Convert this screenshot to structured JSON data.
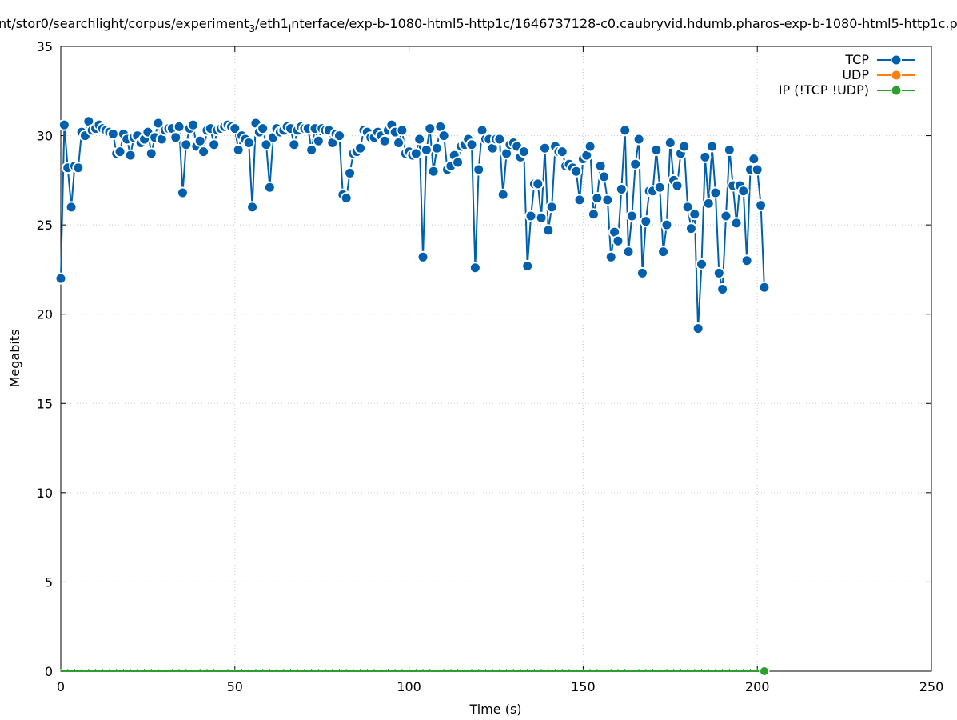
{
  "chart_data": {
    "type": "line",
    "title_parts": [
      "nt/stor0/searchlight/corpus/experiment",
      "3",
      "/eth1",
      "i",
      "nterface/exp-b-1080-html5-http1c/1646737128-c0.caubryvid.hdumb.pharos-exp-b-1080-html5-http1c.p"
    ],
    "xlabel": "Time (s)",
    "ylabel": "Megabits",
    "xlim": [
      0,
      250
    ],
    "ylim": [
      0,
      35
    ],
    "xticks": [
      0,
      50,
      100,
      150,
      200,
      250
    ],
    "yticks": [
      0,
      5,
      10,
      15,
      20,
      25,
      30,
      35
    ],
    "grid": true,
    "legend_position": "top-right",
    "series": [
      {
        "name": "TCP",
        "color": "#0060ad",
        "points": [
          [
            0,
            22.0
          ],
          [
            1,
            30.6
          ],
          [
            2,
            28.2
          ],
          [
            3,
            26.0
          ],
          [
            4,
            28.3
          ],
          [
            5,
            28.2
          ],
          [
            6,
            30.2
          ],
          [
            7,
            30.0
          ],
          [
            8,
            30.8
          ],
          [
            9,
            30.3
          ],
          [
            10,
            30.4
          ],
          [
            11,
            30.6
          ],
          [
            12,
            30.4
          ],
          [
            13,
            30.3
          ],
          [
            14,
            30.2
          ],
          [
            15,
            30.1
          ],
          [
            16,
            29.0
          ],
          [
            17,
            29.1
          ],
          [
            18,
            30.1
          ],
          [
            19,
            29.8
          ],
          [
            20,
            28.9
          ],
          [
            21,
            29.9
          ],
          [
            22,
            30.0
          ],
          [
            23,
            29.6
          ],
          [
            24,
            29.8
          ],
          [
            25,
            30.2
          ],
          [
            26,
            29.0
          ],
          [
            27,
            29.9
          ],
          [
            28,
            30.7
          ],
          [
            29,
            29.8
          ],
          [
            30,
            30.3
          ],
          [
            31,
            30.4
          ],
          [
            32,
            30.4
          ],
          [
            33,
            29.9
          ],
          [
            34,
            30.5
          ],
          [
            35,
            26.8
          ],
          [
            36,
            29.5
          ],
          [
            37,
            30.4
          ],
          [
            38,
            30.6
          ],
          [
            39,
            29.4
          ],
          [
            40,
            29.7
          ],
          [
            41,
            29.1
          ],
          [
            42,
            30.3
          ],
          [
            43,
            30.4
          ],
          [
            44,
            29.5
          ],
          [
            45,
            30.3
          ],
          [
            46,
            30.4
          ],
          [
            47,
            30.5
          ],
          [
            48,
            30.6
          ],
          [
            49,
            30.5
          ],
          [
            50,
            30.4
          ],
          [
            51,
            29.2
          ],
          [
            52,
            30.0
          ],
          [
            53,
            29.8
          ],
          [
            54,
            29.6
          ],
          [
            55,
            26.0
          ],
          [
            56,
            30.7
          ],
          [
            57,
            30.2
          ],
          [
            58,
            30.4
          ],
          [
            59,
            29.5
          ],
          [
            60,
            27.1
          ],
          [
            61,
            29.9
          ],
          [
            62,
            30.4
          ],
          [
            63,
            30.2
          ],
          [
            64,
            30.3
          ],
          [
            65,
            30.5
          ],
          [
            66,
            30.4
          ],
          [
            67,
            29.5
          ],
          [
            68,
            30.3
          ],
          [
            69,
            30.5
          ],
          [
            70,
            30.4
          ],
          [
            71,
            30.4
          ],
          [
            72,
            29.2
          ],
          [
            73,
            30.4
          ],
          [
            74,
            29.7
          ],
          [
            75,
            30.4
          ],
          [
            76,
            30.3
          ],
          [
            77,
            30.3
          ],
          [
            78,
            29.6
          ],
          [
            79,
            30.1
          ],
          [
            80,
            30.0
          ],
          [
            81,
            26.7
          ],
          [
            82,
            26.5
          ],
          [
            83,
            27.9
          ],
          [
            84,
            29.0
          ],
          [
            85,
            29.1
          ],
          [
            86,
            29.3
          ],
          [
            87,
            30.3
          ],
          [
            88,
            30.2
          ],
          [
            89,
            29.9
          ],
          [
            90,
            29.9
          ],
          [
            91,
            30.2
          ],
          [
            92,
            30.0
          ],
          [
            93,
            29.7
          ],
          [
            94,
            30.3
          ],
          [
            95,
            30.6
          ],
          [
            96,
            30.2
          ],
          [
            97,
            29.6
          ],
          [
            98,
            30.3
          ],
          [
            99,
            29.0
          ],
          [
            100,
            29.1
          ],
          [
            101,
            28.9
          ],
          [
            102,
            29.0
          ],
          [
            103,
            29.8
          ],
          [
            104,
            23.2
          ],
          [
            105,
            29.2
          ],
          [
            106,
            30.4
          ],
          [
            107,
            28.0
          ],
          [
            108,
            29.3
          ],
          [
            109,
            30.5
          ],
          [
            110,
            30.0
          ],
          [
            111,
            28.1
          ],
          [
            112,
            28.3
          ],
          [
            113,
            28.9
          ],
          [
            114,
            28.5
          ],
          [
            115,
            29.4
          ],
          [
            116,
            29.5
          ],
          [
            117,
            29.8
          ],
          [
            118,
            29.5
          ],
          [
            119,
            22.6
          ],
          [
            120,
            28.1
          ],
          [
            121,
            30.3
          ],
          [
            122,
            29.8
          ],
          [
            123,
            29.8
          ],
          [
            124,
            29.3
          ],
          [
            125,
            29.8
          ],
          [
            126,
            29.8
          ],
          [
            127,
            26.7
          ],
          [
            128,
            29.0
          ],
          [
            129,
            29.5
          ],
          [
            130,
            29.6
          ],
          [
            131,
            29.4
          ],
          [
            132,
            28.8
          ],
          [
            133,
            29.1
          ],
          [
            134,
            22.7
          ],
          [
            135,
            25.5
          ],
          [
            136,
            27.3
          ],
          [
            137,
            27.3
          ],
          [
            138,
            25.4
          ],
          [
            139,
            29.3
          ],
          [
            140,
            24.7
          ],
          [
            141,
            26.0
          ],
          [
            142,
            29.4
          ],
          [
            143,
            29.1
          ],
          [
            144,
            29.1
          ],
          [
            145,
            28.3
          ],
          [
            146,
            28.4
          ],
          [
            147,
            28.2
          ],
          [
            148,
            28.0
          ],
          [
            149,
            26.4
          ],
          [
            150,
            28.7
          ],
          [
            151,
            28.9
          ],
          [
            152,
            29.4
          ],
          [
            153,
            25.6
          ],
          [
            154,
            26.5
          ],
          [
            155,
            28.3
          ],
          [
            156,
            27.7
          ],
          [
            157,
            26.4
          ],
          [
            158,
            23.2
          ],
          [
            159,
            24.6
          ],
          [
            160,
            24.1
          ],
          [
            161,
            27.0
          ],
          [
            162,
            30.3
          ],
          [
            163,
            23.5
          ],
          [
            164,
            25.5
          ],
          [
            165,
            28.4
          ],
          [
            166,
            29.8
          ],
          [
            167,
            22.3
          ],
          [
            168,
            25.2
          ],
          [
            169,
            26.9
          ],
          [
            170,
            26.9
          ],
          [
            171,
            29.2
          ],
          [
            172,
            27.1
          ],
          [
            173,
            23.5
          ],
          [
            174,
            25.0
          ],
          [
            175,
            29.6
          ],
          [
            176,
            27.5
          ],
          [
            177,
            27.2
          ],
          [
            178,
            29.0
          ],
          [
            179,
            29.4
          ],
          [
            180,
            26.0
          ],
          [
            181,
            24.8
          ],
          [
            182,
            25.6
          ],
          [
            183,
            19.2
          ],
          [
            184,
            22.8
          ],
          [
            185,
            28.8
          ],
          [
            186,
            26.2
          ],
          [
            187,
            29.4
          ],
          [
            188,
            26.8
          ],
          [
            189,
            22.3
          ],
          [
            190,
            21.4
          ],
          [
            191,
            25.5
          ],
          [
            192,
            29.2
          ],
          [
            193,
            27.2
          ],
          [
            194,
            25.1
          ],
          [
            195,
            27.2
          ],
          [
            196,
            26.9
          ],
          [
            197,
            23.0
          ],
          [
            198,
            28.1
          ],
          [
            199,
            28.7
          ],
          [
            200,
            28.1
          ],
          [
            201,
            26.1
          ],
          [
            202,
            21.5
          ]
        ]
      },
      {
        "name": "UDP",
        "color": "#ff7f0e",
        "points": []
      },
      {
        "name": "IP (!TCP  !UDP)",
        "color": "#2ca02c",
        "points": [
          [
            0,
            0
          ],
          [
            2,
            0
          ],
          [
            4,
            0
          ],
          [
            6,
            0
          ],
          [
            8,
            0
          ],
          [
            10,
            0
          ],
          [
            12,
            0
          ],
          [
            14,
            0
          ],
          [
            16,
            0
          ],
          [
            18,
            0
          ],
          [
            20,
            0
          ],
          [
            22,
            0
          ],
          [
            24,
            0
          ],
          [
            26,
            0
          ],
          [
            28,
            0
          ],
          [
            30,
            0
          ],
          [
            32,
            0
          ],
          [
            34,
            0
          ],
          [
            36,
            0
          ],
          [
            38,
            0
          ],
          [
            40,
            0
          ],
          [
            42,
            0
          ],
          [
            44,
            0
          ],
          [
            46,
            0
          ],
          [
            48,
            0
          ],
          [
            50,
            0
          ],
          [
            52,
            0
          ],
          [
            54,
            0
          ],
          [
            56,
            0
          ],
          [
            58,
            0
          ],
          [
            60,
            0
          ],
          [
            62,
            0
          ],
          [
            64,
            0
          ],
          [
            66,
            0
          ],
          [
            68,
            0
          ],
          [
            70,
            0
          ],
          [
            72,
            0
          ],
          [
            74,
            0
          ],
          [
            76,
            0
          ],
          [
            78,
            0
          ],
          [
            80,
            0
          ],
          [
            82,
            0
          ],
          [
            84,
            0
          ],
          [
            86,
            0
          ],
          [
            88,
            0
          ],
          [
            90,
            0
          ],
          [
            92,
            0
          ],
          [
            94,
            0
          ],
          [
            96,
            0
          ],
          [
            98,
            0
          ],
          [
            100,
            0
          ],
          [
            102,
            0
          ],
          [
            104,
            0
          ],
          [
            106,
            0
          ],
          [
            108,
            0
          ],
          [
            110,
            0
          ],
          [
            112,
            0
          ],
          [
            114,
            0
          ],
          [
            116,
            0
          ],
          [
            118,
            0
          ],
          [
            120,
            0
          ],
          [
            122,
            0
          ],
          [
            124,
            0
          ],
          [
            126,
            0
          ],
          [
            128,
            0
          ],
          [
            130,
            0
          ],
          [
            132,
            0
          ],
          [
            134,
            0
          ],
          [
            136,
            0
          ],
          [
            138,
            0
          ],
          [
            140,
            0
          ],
          [
            142,
            0
          ],
          [
            144,
            0
          ],
          [
            146,
            0
          ],
          [
            148,
            0
          ],
          [
            150,
            0
          ],
          [
            152,
            0
          ],
          [
            154,
            0
          ],
          [
            156,
            0
          ],
          [
            158,
            0
          ],
          [
            160,
            0
          ],
          [
            162,
            0
          ],
          [
            164,
            0
          ],
          [
            166,
            0
          ],
          [
            168,
            0
          ],
          [
            170,
            0
          ],
          [
            172,
            0
          ],
          [
            174,
            0
          ],
          [
            176,
            0
          ],
          [
            178,
            0
          ],
          [
            180,
            0
          ],
          [
            182,
            0
          ],
          [
            184,
            0
          ],
          [
            186,
            0
          ],
          [
            188,
            0
          ],
          [
            190,
            0
          ],
          [
            192,
            0
          ],
          [
            194,
            0
          ],
          [
            196,
            0
          ],
          [
            198,
            0
          ],
          [
            200,
            0
          ],
          [
            202,
            0
          ]
        ]
      }
    ]
  }
}
